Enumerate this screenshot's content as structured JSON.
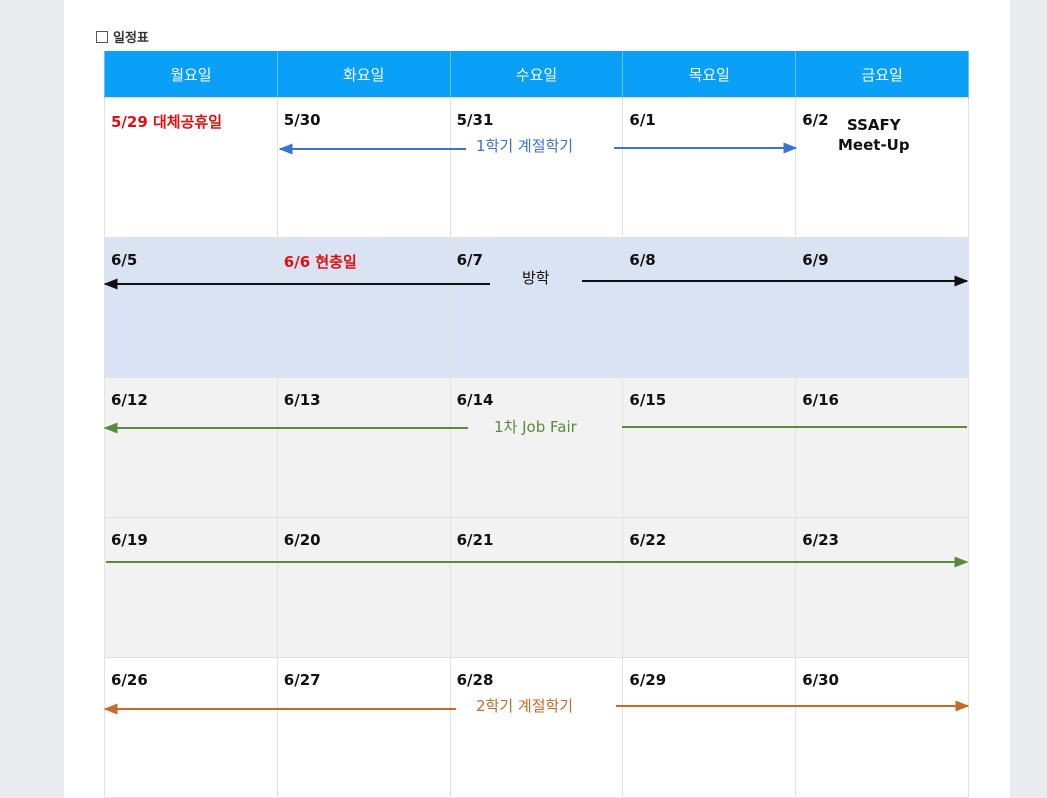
{
  "title": "일정표",
  "weekdays": [
    "월요일",
    "화요일",
    "수요일",
    "목요일",
    "금요일"
  ],
  "weeks": [
    {
      "days": [
        {
          "label": "5/29 대체공휴일",
          "holiday": true
        },
        {
          "label": "5/30",
          "holiday": false
        },
        {
          "label": "5/31",
          "holiday": false
        },
        {
          "label": "6/1",
          "holiday": false
        },
        {
          "label": "6/2",
          "holiday": false
        }
      ]
    },
    {
      "days": [
        {
          "label": "6/5",
          "holiday": false
        },
        {
          "label": "6/6 현충일",
          "holiday": true
        },
        {
          "label": "6/7",
          "holiday": false
        },
        {
          "label": "6/8",
          "holiday": false
        },
        {
          "label": "6/9",
          "holiday": false
        }
      ]
    },
    {
      "days": [
        {
          "label": "6/12",
          "holiday": false
        },
        {
          "label": "6/13",
          "holiday": false
        },
        {
          "label": "6/14",
          "holiday": false
        },
        {
          "label": "6/15",
          "holiday": false
        },
        {
          "label": "6/16",
          "holiday": false
        }
      ]
    },
    {
      "days": [
        {
          "label": "6/19",
          "holiday": false
        },
        {
          "label": "6/20",
          "holiday": false
        },
        {
          "label": "6/21",
          "holiday": false
        },
        {
          "label": "6/22",
          "holiday": false
        },
        {
          "label": "6/23",
          "holiday": false
        }
      ]
    },
    {
      "days": [
        {
          "label": "6/26",
          "holiday": false
        },
        {
          "label": "6/27",
          "holiday": false
        },
        {
          "label": "6/28",
          "holiday": false
        },
        {
          "label": "6/29",
          "holiday": false
        },
        {
          "label": "6/30",
          "holiday": false
        }
      ]
    }
  ],
  "event_note": {
    "line1": "SSAFY",
    "line2": "Meet-Up"
  },
  "spans": [
    {
      "label": "1학기 계절학기",
      "color": "#3a72d8"
    },
    {
      "label": "방학",
      "color": "#111111"
    },
    {
      "label": "1차 Job Fair",
      "color": "#5a8a3a"
    },
    {
      "label": "",
      "color": "#5a8a3a"
    },
    {
      "label": "2학기 계절학기",
      "color": "#c86a2a"
    }
  ],
  "colors": {
    "header_bg": "#0aa0f8",
    "holiday_text": "#e01010",
    "vacation_row_bg": "#dae3f3"
  }
}
